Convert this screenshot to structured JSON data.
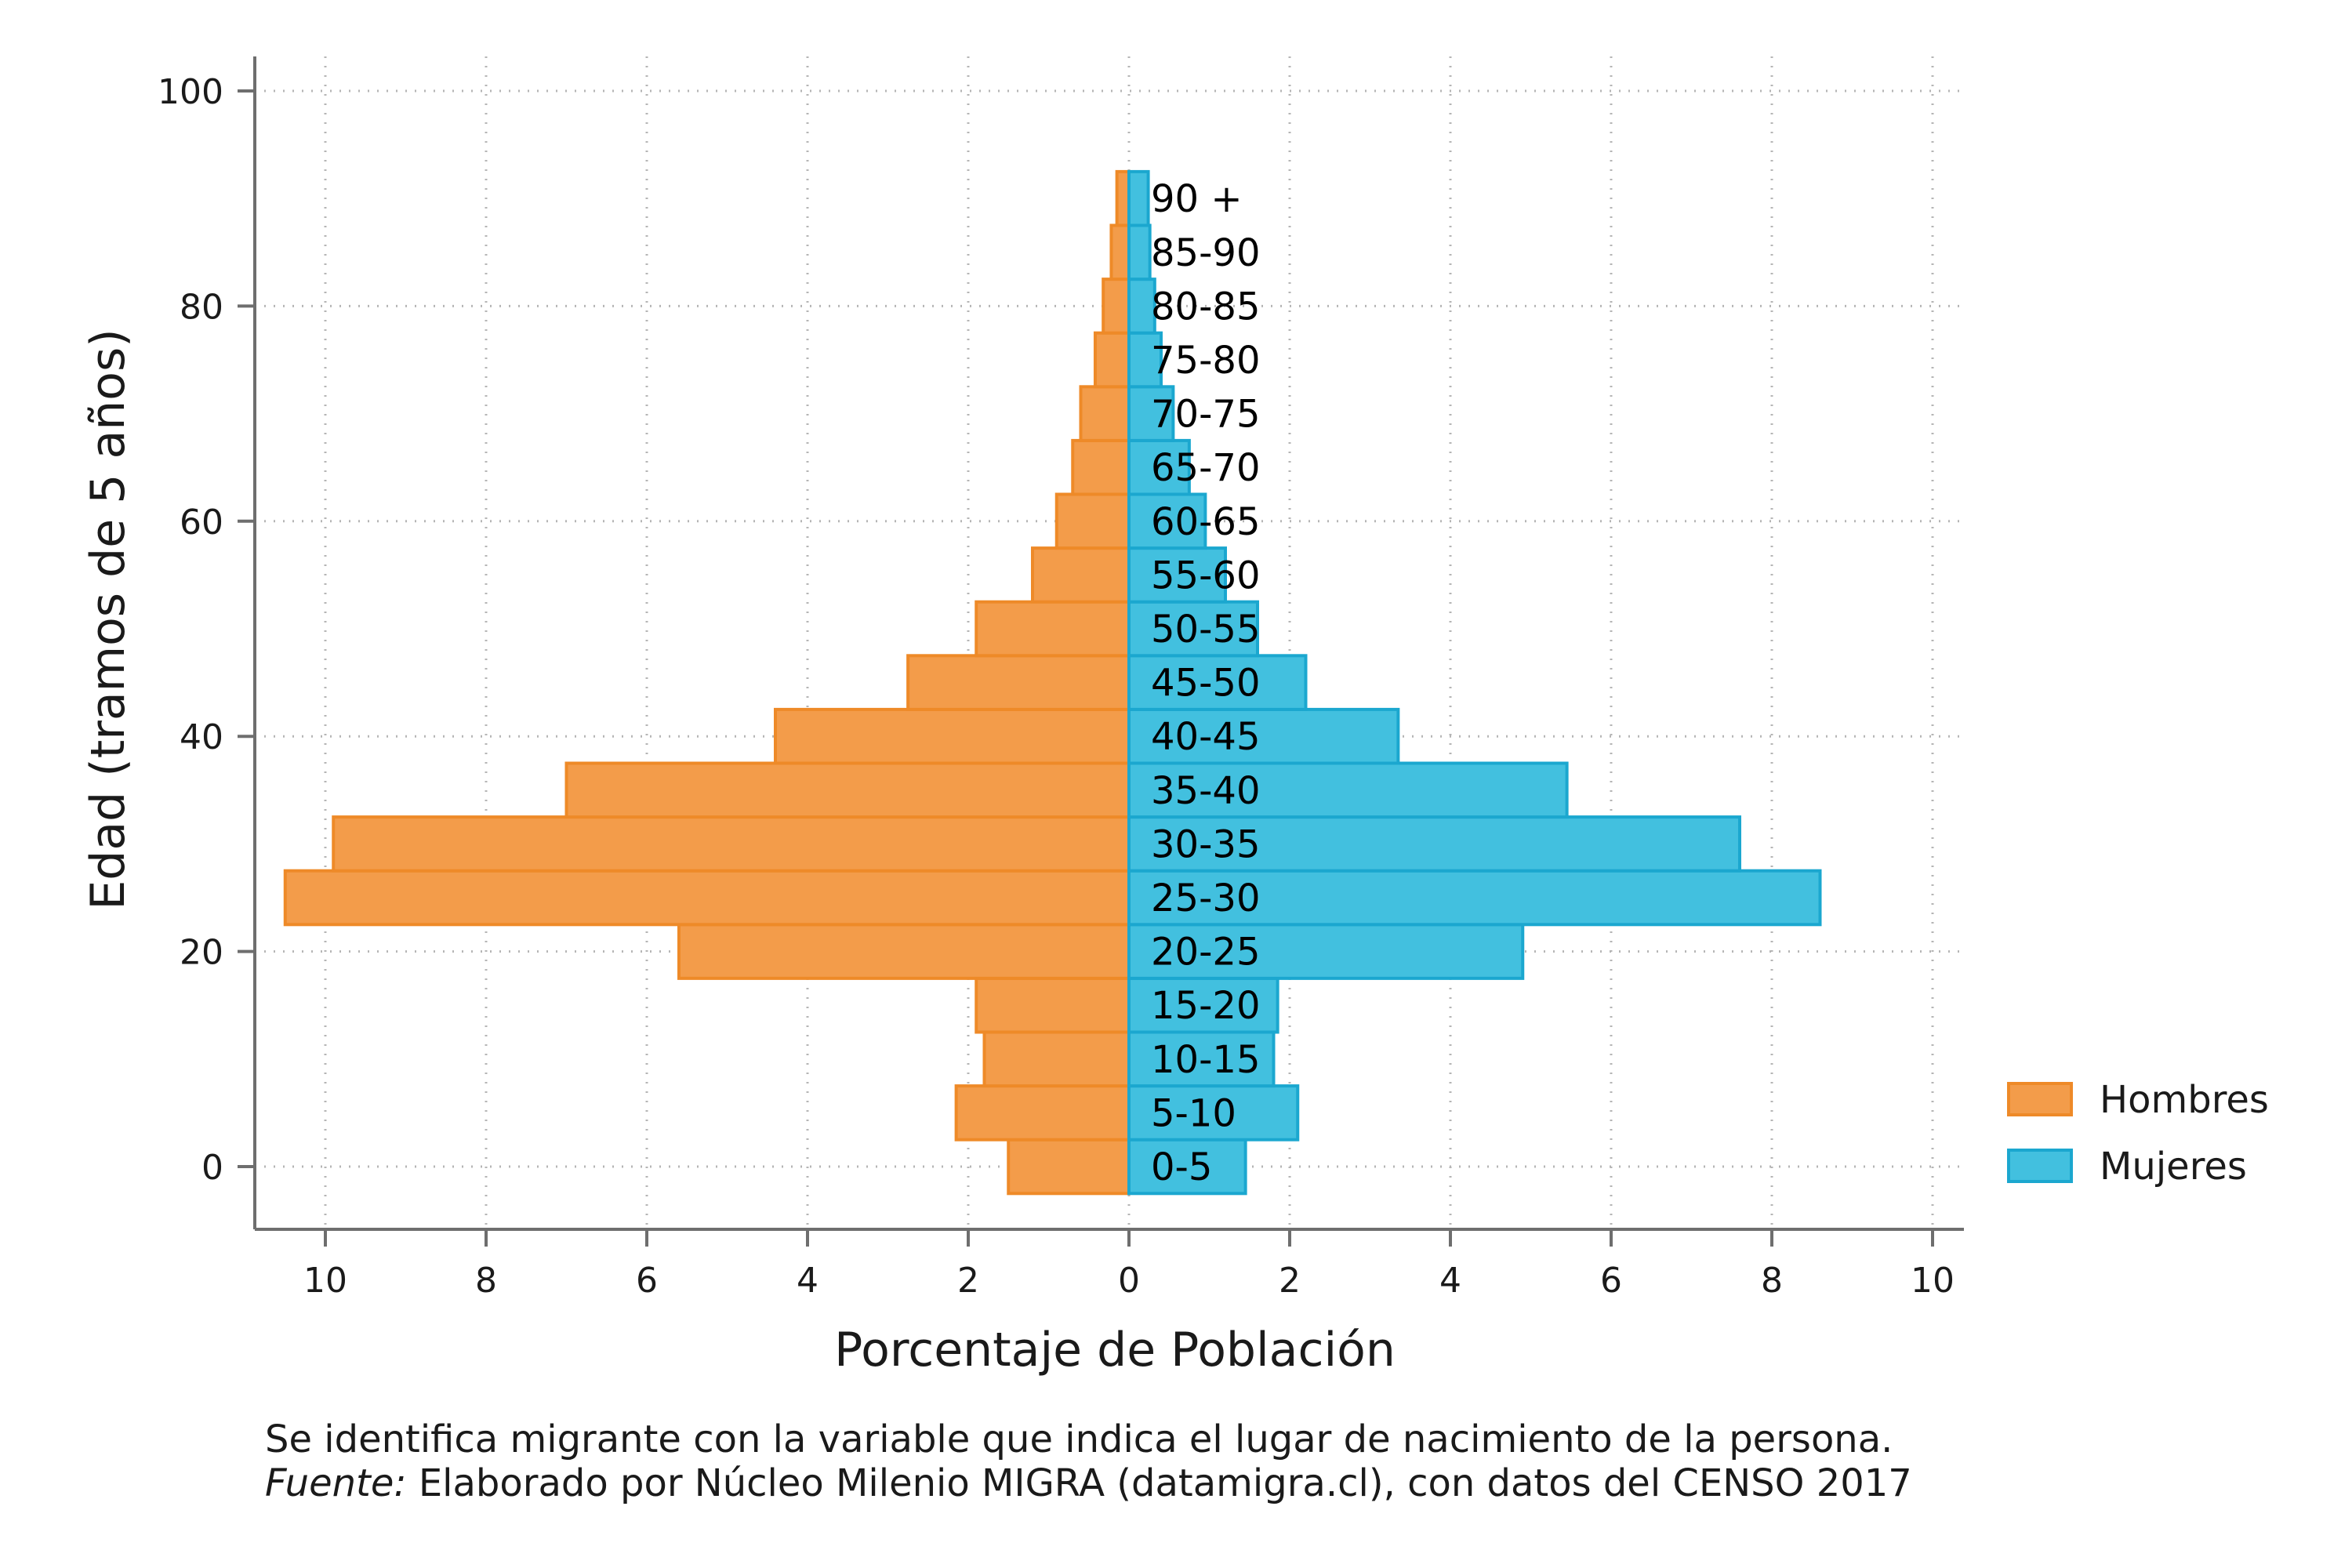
{
  "chart_data": {
    "type": "bar",
    "orientation": "horizontal",
    "subtype": "population-pyramid",
    "xlabel": "Porcentaje de Población",
    "ylabel": "Edad (tramos de 5 años)",
    "xlim": [
      -10,
      10
    ],
    "ylim": [
      0,
      100
    ],
    "xticks": [
      -10,
      -8,
      -6,
      -4,
      -2,
      0,
      2,
      4,
      6,
      8,
      10
    ],
    "xtick_labels": [
      "10",
      "8",
      "6",
      "4",
      "2",
      "0",
      "2",
      "4",
      "6",
      "8",
      "10"
    ],
    "yticks": [
      0,
      20,
      40,
      60,
      80,
      100
    ],
    "ytick_labels": [
      "0",
      "20",
      "40",
      "60",
      "80",
      "100"
    ],
    "grid": true,
    "legend_position": "right",
    "categories": [
      "0-5",
      "5-10",
      "10-15",
      "15-20",
      "20-25",
      "25-30",
      "30-35",
      "35-40",
      "40-45",
      "45-50",
      "50-55",
      "55-60",
      "60-65",
      "65-70",
      "70-75",
      "75-80",
      "80-85",
      "85-90",
      "90 +"
    ],
    "category_y": [
      0,
      5,
      10,
      15,
      20,
      25,
      30,
      35,
      40,
      45,
      50,
      55,
      60,
      65,
      70,
      75,
      80,
      85,
      90
    ],
    "series": [
      {
        "name": "Hombres",
        "color": "#f39c4a",
        "edge_color": "#ee8a28",
        "values": [
          1.5,
          2.15,
          1.8,
          1.9,
          5.6,
          10.5,
          9.9,
          7.0,
          4.4,
          2.75,
          1.9,
          1.2,
          0.9,
          0.7,
          0.6,
          0.42,
          0.32,
          0.22,
          0.15
        ]
      },
      {
        "name": "Mujeres",
        "color": "#42c0df",
        "edge_color": "#1ba7cf",
        "values": [
          1.45,
          2.1,
          1.8,
          1.85,
          4.9,
          8.6,
          7.6,
          5.45,
          3.35,
          2.2,
          1.6,
          1.2,
          0.95,
          0.75,
          0.55,
          0.4,
          0.32,
          0.26,
          0.24
        ]
      }
    ]
  },
  "notes": {
    "line1": "Se identifica migrante con la variable que indica el lugar de nacimiento de la persona.",
    "source_prefix": "Fuente:",
    "source_text": " Elaborado por Núcleo Milenio MIGRA (datamigra.cl), con datos del CENSO 2017"
  }
}
